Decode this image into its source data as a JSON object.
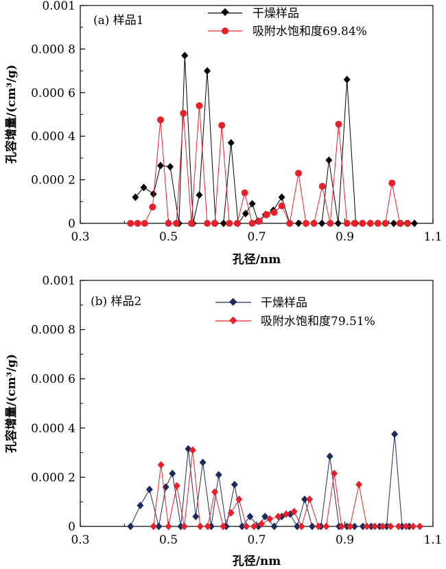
{
  "chart_data": [
    {
      "type": "line",
      "panel_label": "(a) 样品1",
      "xlabel": "孔径/nm",
      "ylabel": "孔容增量/(cm³/g)",
      "xlim": [
        0.3,
        1.1
      ],
      "ylim": [
        0,
        0.001
      ],
      "x_ticks": [
        "0.3",
        "0.5",
        "0.7",
        "0.9",
        "1.1"
      ],
      "y_ticks": [
        "0",
        "0.000 2",
        "0.000 4",
        "0.000 6",
        "0.000 8",
        "0.001"
      ],
      "grid": false,
      "legend_position": "top-center",
      "series": [
        {
          "name": "干燥样品",
          "color": "#000000",
          "marker": "diamond",
          "x": [
            0.425,
            0.444,
            0.466,
            0.482,
            0.504,
            0.524,
            0.537,
            0.556,
            0.57,
            0.588,
            0.607,
            0.625,
            0.642,
            0.658,
            0.675,
            0.69,
            0.703,
            0.72,
            0.738,
            0.757,
            0.775,
            0.795,
            0.811,
            0.83,
            0.848,
            0.864,
            0.885,
            0.905,
            0.925,
            0.941,
            0.958,
            0.974,
            0.993,
            1.011,
            1.028,
            1.044,
            1.058
          ],
          "y": [
            0.00012,
            0.000165,
            0.000135,
            0.000265,
            0.00026,
            0.0,
            0.00077,
            0.0,
            0.00013,
            0.0007,
            0.0,
            0.0,
            0.00037,
            0.0,
            4.5e-05,
            9e-05,
            1e-05,
            4e-05,
            6e-05,
            0.00012,
            0.0,
            0.0,
            0.0,
            0.0,
            0.0,
            0.00029,
            0.0,
            0.00066,
            0.0,
            0.0,
            0.0,
            0.0,
            0.0,
            0.0,
            0.0,
            0.0,
            0.0
          ]
        },
        {
          "name": "吸附水饱和度69.84%",
          "color": "#e8202a",
          "marker": "circle",
          "x": [
            0.414,
            0.43,
            0.446,
            0.464,
            0.482,
            0.5,
            0.518,
            0.534,
            0.552,
            0.57,
            0.588,
            0.605,
            0.621,
            0.638,
            0.656,
            0.673,
            0.69,
            0.706,
            0.723,
            0.74,
            0.757,
            0.775,
            0.795,
            0.812,
            0.83,
            0.849,
            0.867,
            0.886,
            0.905,
            0.922,
            0.94,
            0.958,
            0.975,
            0.992,
            1.007,
            1.025,
            1.042
          ],
          "y": [
            0.0,
            0.0,
            0.0,
            7.5e-05,
            0.000475,
            0.0,
            0.0,
            0.000505,
            0.0,
            0.00054,
            0.0,
            0.0,
            0.00045,
            0.0,
            0.0,
            0.00014,
            0.0,
            1e-05,
            4e-05,
            5e-05,
            8e-05,
            0.0,
            0.00023,
            0.0,
            0.0,
            0.00017,
            0.0,
            0.000455,
            0.0,
            0.0,
            0.0,
            0.0,
            0.0,
            0.0,
            0.000185,
            0.0,
            0.0
          ]
        }
      ]
    },
    {
      "type": "line",
      "panel_label": "(b) 样品2",
      "xlabel": "孔径/nm",
      "ylabel": "孔容增量/(cm³/g)",
      "xlim": [
        0.3,
        1.1
      ],
      "ylim": [
        0,
        0.001
      ],
      "x_ticks": [
        "0.3",
        "0.5",
        "0.7",
        "0.9",
        "1.1"
      ],
      "y_ticks": [
        "0",
        "0.000 2",
        "0.000 4",
        "0.000 6",
        "0.000 8",
        "0.001"
      ],
      "grid": false,
      "legend_position": "top-center",
      "series": [
        {
          "name": "干燥样品",
          "color": "#1c2a5e",
          "marker": "diamond",
          "x": [
            0.414,
            0.436,
            0.457,
            0.478,
            0.494,
            0.509,
            0.528,
            0.545,
            0.562,
            0.578,
            0.597,
            0.614,
            0.631,
            0.65,
            0.667,
            0.685,
            0.704,
            0.719,
            0.74,
            0.757,
            0.776,
            0.792,
            0.809,
            0.826,
            0.846,
            0.866,
            0.887,
            0.905,
            0.922,
            0.941,
            0.96,
            0.979,
            0.995,
            1.013,
            1.03,
            1.046
          ],
          "y": [
            0.0,
            8.5e-05,
            0.00015,
            0.0,
            0.00016,
            0.000215,
            0.0,
            0.000315,
            4e-05,
            0.00026,
            0.0,
            0.00021,
            0.0,
            0.00017,
            0.0,
            4e-05,
            0.0,
            4e-05,
            0.0,
            4e-05,
            5e-05,
            0.0,
            0.00011,
            0.0,
            0.0,
            0.000285,
            0.0,
            0.0,
            0.0,
            0.0,
            0.0,
            0.0,
            0.0,
            0.000375,
            0.0,
            0.0
          ]
        },
        {
          "name": "吸附水饱和度79.51%",
          "color": "#e8202a",
          "marker": "diamond",
          "x": [
            0.466,
            0.483,
            0.5,
            0.519,
            0.536,
            0.555,
            0.572,
            0.589,
            0.605,
            0.624,
            0.642,
            0.66,
            0.677,
            0.694,
            0.711,
            0.73,
            0.749,
            0.767,
            0.785,
            0.802,
            0.82,
            0.84,
            0.858,
            0.876,
            0.893,
            0.912,
            0.932,
            0.95,
            0.968,
            0.986,
            1.004,
            1.022,
            1.039,
            1.055,
            1.07
          ],
          "y": [
            0.0,
            0.00025,
            0.0,
            0.000165,
            0.0,
            0.00031,
            0.0,
            0.0,
            0.00014,
            0.0,
            5.5e-05,
            0.00011,
            0.0,
            0.0,
            1e-05,
            3e-05,
            4e-05,
            5e-05,
            6e-05,
            0.0,
            0.00011,
            0.0,
            0.0,
            0.000215,
            0.0,
            0.0,
            0.00017,
            0.0,
            0.0,
            0.0,
            0.0,
            0.0,
            0.0,
            0.0,
            0.0
          ]
        }
      ]
    }
  ]
}
